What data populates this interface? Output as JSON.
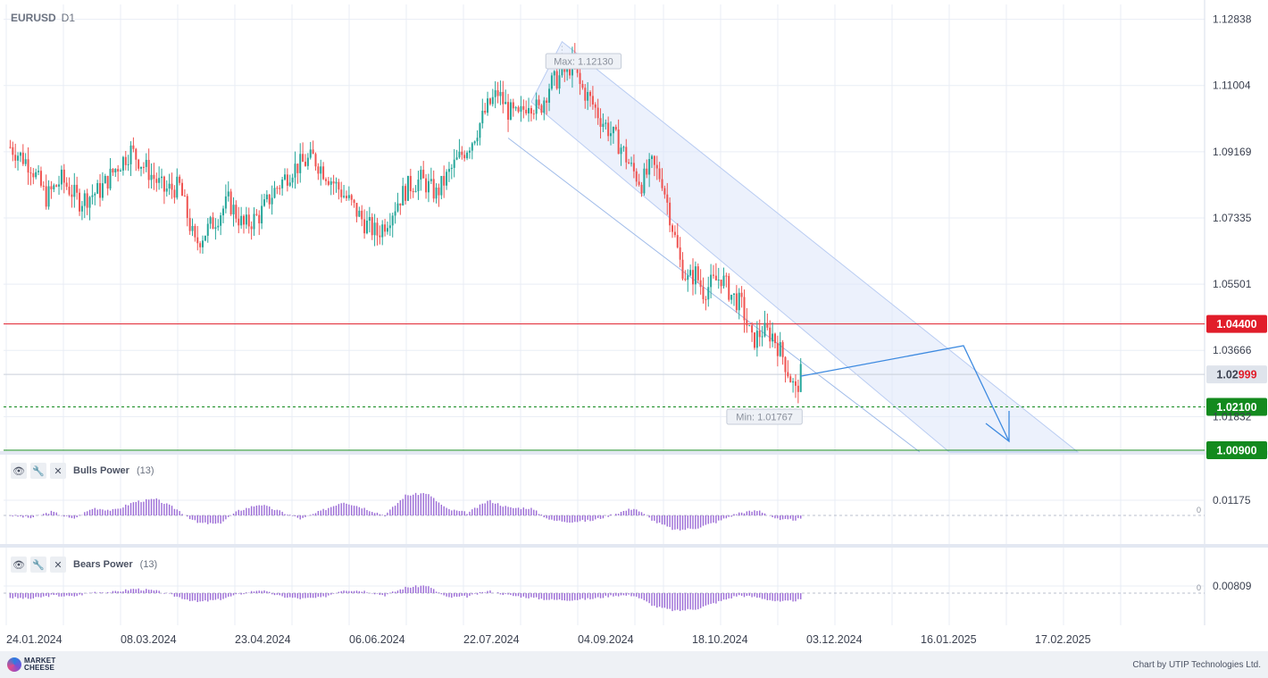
{
  "header": {
    "symbol": "EURUSD",
    "timeframe": "D1"
  },
  "chart_data": {
    "type": "candlestick",
    "symbol": "EURUSD",
    "timeframe": "D1",
    "price_axis_ticks": [
      "1.12838",
      "1.11004",
      "1.09169",
      "1.07335",
      "1.05501",
      "1.03666",
      "1.01832"
    ],
    "date_ticks": [
      "24.01.2024",
      "08.03.2024",
      "23.04.2024",
      "06.06.2024",
      "22.07.2024",
      "04.09.2024",
      "18.10.2024",
      "03.12.2024",
      "16.01.2025",
      "17.02.2025"
    ],
    "ylim": [
      1.0085,
      1.1325
    ],
    "max_label": "Max: 1.12130",
    "min_label": "Min: 1.01767",
    "max_value": 1.1213,
    "min_value": 1.01767,
    "levels": [
      {
        "label": "1.04400",
        "value": 1.044,
        "color": "#e11d2a",
        "style": "solid"
      },
      {
        "label": "1.02100",
        "value": 1.021,
        "color": "#138a1e",
        "style": "dashed"
      },
      {
        "label": "1.00900",
        "value": 1.009,
        "color": "#138a1e",
        "style": "solid"
      }
    ],
    "current_price": {
      "label_prefix": "1.02",
      "label_suffix": "999",
      "value": 1.02999
    },
    "close_path": [
      [
        0,
        1.093
      ],
      [
        8,
        1.088
      ],
      [
        14,
        1.079
      ],
      [
        20,
        1.084
      ],
      [
        27,
        1.078
      ],
      [
        35,
        1.081
      ],
      [
        41,
        1.087
      ],
      [
        47,
        1.092
      ],
      [
        53,
        1.087
      ],
      [
        60,
        1.081
      ],
      [
        66,
        1.082
      ],
      [
        72,
        1.066
      ],
      [
        79,
        1.072
      ],
      [
        85,
        1.078
      ],
      [
        91,
        1.071
      ],
      [
        97,
        1.074
      ],
      [
        103,
        1.081
      ],
      [
        110,
        1.087
      ],
      [
        118,
        1.09
      ],
      [
        125,
        1.084
      ],
      [
        132,
        1.078
      ],
      [
        138,
        1.072
      ],
      [
        143,
        1.069
      ],
      [
        147,
        1.073
      ],
      [
        151,
        1.078
      ],
      [
        155,
        1.082
      ],
      [
        160,
        1.084
      ],
      [
        166,
        1.08
      ],
      [
        173,
        1.088
      ],
      [
        180,
        1.095
      ],
      [
        186,
        1.104
      ],
      [
        190,
        1.108
      ],
      [
        194,
        1.103
      ],
      [
        198,
        1.101
      ],
      [
        202,
        1.106
      ],
      [
        206,
        1.103
      ],
      [
        210,
        1.11
      ],
      [
        215,
        1.113
      ],
      [
        219,
        1.116
      ],
      [
        222,
        1.11
      ],
      [
        226,
        1.106
      ],
      [
        230,
        1.101
      ],
      [
        234,
        1.097
      ],
      [
        238,
        1.093
      ],
      [
        242,
        1.087
      ],
      [
        246,
        1.083
      ],
      [
        250,
        1.088
      ],
      [
        254,
        1.084
      ],
      [
        258,
        1.071
      ],
      [
        261,
        1.061
      ],
      [
        264,
        1.056
      ],
      [
        267,
        1.058
      ],
      [
        270,
        1.053
      ],
      [
        273,
        1.055
      ],
      [
        277,
        1.057
      ],
      [
        281,
        1.052
      ],
      [
        285,
        1.049
      ],
      [
        289,
        1.039
      ],
      [
        293,
        1.042
      ],
      [
        297,
        1.041
      ],
      [
        301,
        1.035
      ],
      [
        304,
        1.029
      ],
      [
        306,
        1.025
      ],
      [
        308,
        1.03
      ]
    ],
    "bulls_power": {
      "name": "Bulls Power",
      "param": "(13)",
      "tick": "0.01175",
      "zero_label": "0",
      "values": [
        0.0,
        -0.002,
        0.003,
        -0.003,
        0.006,
        0.004,
        0.011,
        0.013,
        0.005,
        -0.006,
        -0.007,
        0.004,
        0.009,
        0.003,
        -0.003,
        0.004,
        0.011,
        0.006,
        0.0,
        0.016,
        0.018,
        0.005,
        0.002,
        0.012,
        0.006,
        0.006,
        -0.004,
        -0.005,
        -0.004,
        0.001,
        0.006,
        -0.005,
        -0.012,
        -0.01,
        -0.005,
        0.002,
        0.004,
        -0.004,
        -0.003
      ]
    },
    "bears_power": {
      "name": "Bears Power",
      "param": "(13)",
      "tick": "0.00809",
      "zero_label": "0",
      "values": [
        -0.004,
        -0.005,
        -0.002,
        -0.003,
        0.001,
        0.001,
        0.004,
        0.002,
        -0.003,
        -0.008,
        -0.006,
        -0.001,
        0.003,
        -0.003,
        -0.005,
        -0.004,
        0.003,
        0.002,
        -0.002,
        0.005,
        0.007,
        -0.004,
        -0.003,
        0.002,
        -0.002,
        -0.004,
        -0.006,
        -0.006,
        -0.005,
        -0.002,
        -0.002,
        -0.012,
        -0.016,
        -0.014,
        -0.008,
        -0.002,
        -0.004,
        -0.008,
        -0.006
      ]
    }
  },
  "indicators": [
    {
      "name": "Bulls Power",
      "param": "(13)"
    },
    {
      "name": "Bears Power",
      "param": "(13)"
    }
  ],
  "footer": {
    "logo_line1": "MARKET",
    "logo_line2": "CHEESE",
    "credit": "Chart by UTIP Technologies Ltd."
  },
  "colors": {
    "bull": "#26a69a",
    "bear": "#ef5350",
    "channel": "#dce6fa",
    "osc": "#9b6bd6",
    "forecast": "#3d8ae0"
  }
}
